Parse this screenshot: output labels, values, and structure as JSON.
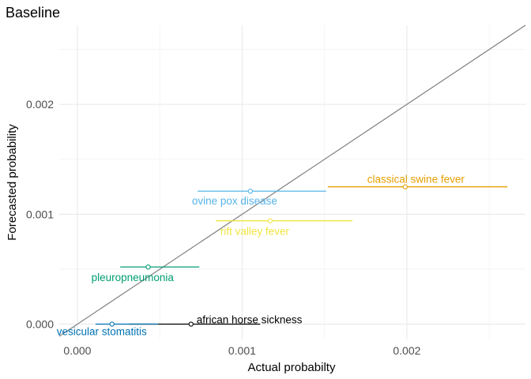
{
  "chart_data": {
    "type": "scatter",
    "title": "Baseline",
    "xlabel": "Actual probabilty",
    "ylabel": "Forecasted probability",
    "xlim": [
      -0.00011,
      0.00272
    ],
    "ylim": [
      -0.00014,
      0.00272
    ],
    "x_ticks": [
      0.0,
      0.001,
      0.002
    ],
    "x_tick_labels": [
      "0.000",
      "0.001",
      "0.002"
    ],
    "y_ticks": [
      0.0,
      0.001,
      0.002
    ],
    "y_tick_labels": [
      "0.000",
      "0.001",
      "0.002"
    ],
    "grid": true,
    "reference_line": "y = x",
    "reference_line_color": "#808080",
    "points": [
      {
        "label": "classical swine fever",
        "x": 0.00199,
        "y": 0.00125,
        "x_low": 0.00152,
        "x_high": 0.00261,
        "color": "#E69F00"
      },
      {
        "label": "ovine pox disease",
        "x": 0.00105,
        "y": 0.00121,
        "x_low": 0.00073,
        "x_high": 0.00151,
        "color": "#56B4E9"
      },
      {
        "label": "rift valley fever",
        "x": 0.00117,
        "y": 0.00094,
        "x_low": 0.00084,
        "x_high": 0.00167,
        "color": "#F0E442"
      },
      {
        "label": "pleuropneumonia",
        "x": 0.00043,
        "y": 0.00052,
        "x_low": 0.00026,
        "x_high": 0.00074,
        "color": "#009E73"
      },
      {
        "label": "african horse sickness",
        "x": 0.00069,
        "y": 0.0,
        "x_low": 0.00031,
        "x_high": 0.00111,
        "color": "#000000"
      },
      {
        "label": "vesicular stomatitis",
        "x": 0.00021,
        "y": 0.0,
        "x_low": 0.00011,
        "x_high": 0.00049,
        "color": "#0072B2"
      }
    ]
  }
}
